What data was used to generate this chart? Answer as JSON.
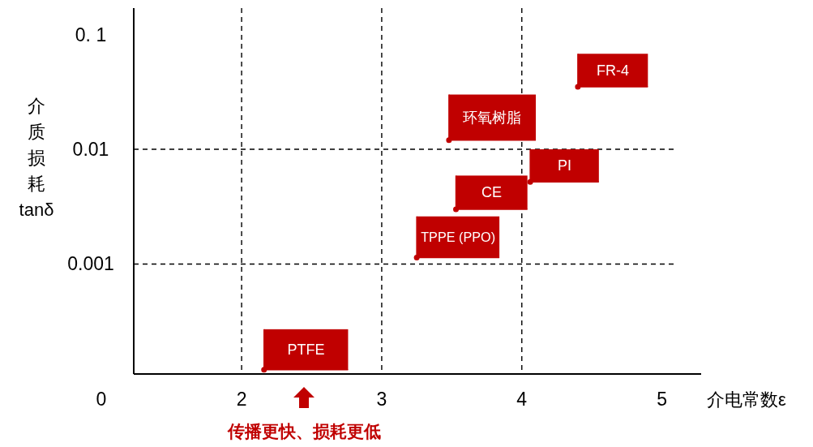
{
  "chart_data": {
    "type": "scatter",
    "xlabel": "介电常数ε",
    "ylabel": "介质损耗tanδ",
    "log": "y",
    "xlim": [
      1.23,
      5.28
    ],
    "ylim": [
      0.00011,
      0.17
    ],
    "xticks": [
      2,
      3,
      4,
      5
    ],
    "yticks": [
      {
        "value": 0.001,
        "label": "0.001"
      },
      {
        "value": 0.01,
        "label": "0.01"
      },
      {
        "value": 0.1,
        "label": "0. 1"
      }
    ],
    "ref_lines": [
      {
        "axis": "x",
        "value": 2,
        "line_style": "dashed",
        "color": "#000000"
      },
      {
        "axis": "x",
        "value": 3,
        "line_style": "dashed",
        "color": "#000000"
      },
      {
        "axis": "x",
        "value": 4,
        "line_style": "dashed",
        "color": "#000000"
      },
      {
        "axis": "y",
        "value": 0.01,
        "line_style": "dashed",
        "color": "#000000"
      },
      {
        "axis": "y",
        "value": 0.001,
        "line_style": "dashed",
        "color": "#000000"
      }
    ],
    "series": [
      {
        "name": "FR-4",
        "color": "#c00000",
        "x": [
          4.4
        ],
        "values": [
          0.035
        ],
        "xerrors": [
          [
            4.4,
            4.9
          ]
        ],
        "errors": [
          [
            0.035,
            0.068
          ]
        ]
      },
      {
        "name": "环氧树脂",
        "color": "#c00000",
        "x": [
          3.48
        ],
        "values": [
          0.012
        ],
        "xerrors": [
          [
            3.48,
            4.1
          ]
        ],
        "errors": [
          [
            0.012,
            0.03
          ]
        ]
      },
      {
        "name": "PI",
        "color": "#c00000",
        "x": [
          4.06
        ],
        "values": [
          0.0052
        ],
        "xerrors": [
          [
            4.06,
            4.55
          ]
        ],
        "errors": [
          [
            0.0052,
            0.01
          ]
        ]
      },
      {
        "name": "CE",
        "color": "#c00000",
        "x": [
          3.53
        ],
        "values": [
          0.003
        ],
        "xerrors": [
          [
            3.53,
            4.04
          ]
        ],
        "errors": [
          [
            0.003,
            0.0059
          ]
        ]
      },
      {
        "name": "TPPE (PPO)",
        "color": "#c00000",
        "x": [
          3.25
        ],
        "values": [
          0.00114
        ],
        "xerrors": [
          [
            3.25,
            3.84
          ]
        ],
        "errors": [
          [
            0.00114,
            0.0026
          ]
        ]
      },
      {
        "name": "PTFE",
        "color": "#c00000",
        "x": [
          2.16
        ],
        "values": [
          0.00012
        ],
        "xerrors": [
          [
            2.16,
            2.76
          ]
        ],
        "errors": [
          [
            0.00012,
            0.00027
          ]
        ]
      }
    ],
    "annotations": [
      "0",
      "传播更快、损耗更低"
    ]
  }
}
